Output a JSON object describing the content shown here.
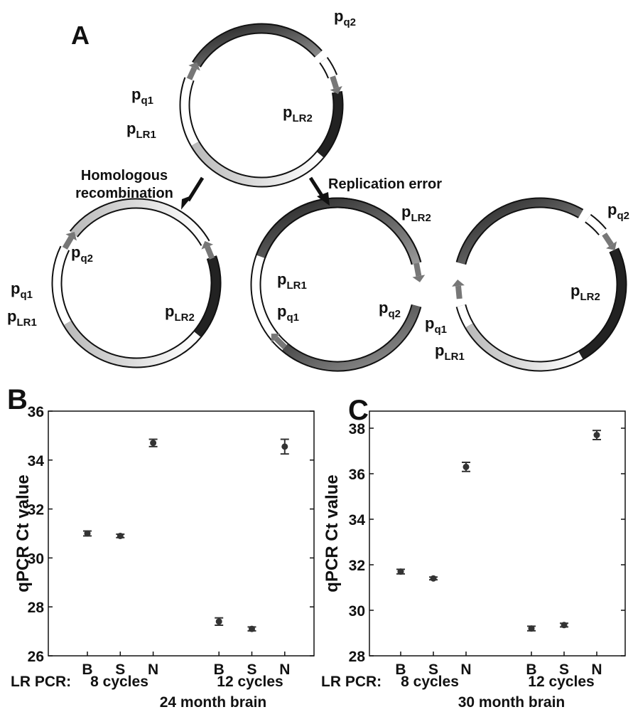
{
  "diagram": {
    "panel_label": "A",
    "arrow_labels": [
      "Homologous",
      "recombination",
      "Replication error"
    ],
    "primers": [
      {
        "main": "p",
        "sub": "q2"
      },
      {
        "main": "p",
        "sub": "q1"
      },
      {
        "main": "p",
        "sub": "LR1"
      },
      {
        "main": "p",
        "sub": "LR2"
      },
      {
        "main": "p",
        "sub": "q2"
      },
      {
        "main": "p",
        "sub": "q1"
      },
      {
        "main": "p",
        "sub": "LR1"
      },
      {
        "main": "p",
        "sub": "LR2"
      },
      {
        "main": "p",
        "sub": "LR2"
      },
      {
        "main": "p",
        "sub": "LR1"
      },
      {
        "main": "p",
        "sub": "q1"
      },
      {
        "main": "p",
        "sub": "q2"
      },
      {
        "main": "p",
        "sub": "q1"
      },
      {
        "main": "p",
        "sub": "LR1"
      },
      {
        "main": "p",
        "sub": "q2"
      },
      {
        "main": "p",
        "sub": "LR2"
      }
    ]
  },
  "chart_data": [
    {
      "type": "errorbar",
      "panel_label": "B",
      "ylabel": "qPCR Ct value",
      "categories": [
        "B",
        "S",
        "N",
        null,
        "B",
        "S",
        "N"
      ],
      "values": [
        31.0,
        30.9,
        34.7,
        null,
        27.4,
        27.1,
        34.55
      ],
      "errors": [
        0.1,
        0.07,
        0.15,
        null,
        0.15,
        0.08,
        0.3
      ],
      "ylim": [
        26,
        36
      ],
      "yticks": [
        26,
        28,
        30,
        32,
        34,
        36
      ],
      "row_label": "LR PCR:",
      "group_labels": [
        "8 cycles",
        "12 cycles"
      ],
      "xlabel": "24 month brain",
      "color": "#333333"
    },
    {
      "type": "errorbar",
      "panel_label": "C",
      "ylabel": "qPCR Ct value",
      "categories": [
        "B",
        "S",
        "N",
        null,
        "B",
        "S",
        "N"
      ],
      "values": [
        31.7,
        31.4,
        36.3,
        null,
        29.2,
        29.35,
        37.7
      ],
      "errors": [
        0.1,
        0.06,
        0.2,
        null,
        0.1,
        0.08,
        0.2
      ],
      "ylim": [
        28,
        38.75
      ],
      "yticks": [
        28,
        30,
        32,
        34,
        36,
        38
      ],
      "row_label": "LR PCR:",
      "group_labels": [
        "8 cycles",
        "12 cycles"
      ],
      "xlabel": "30 month brain",
      "color": "#333333"
    }
  ]
}
